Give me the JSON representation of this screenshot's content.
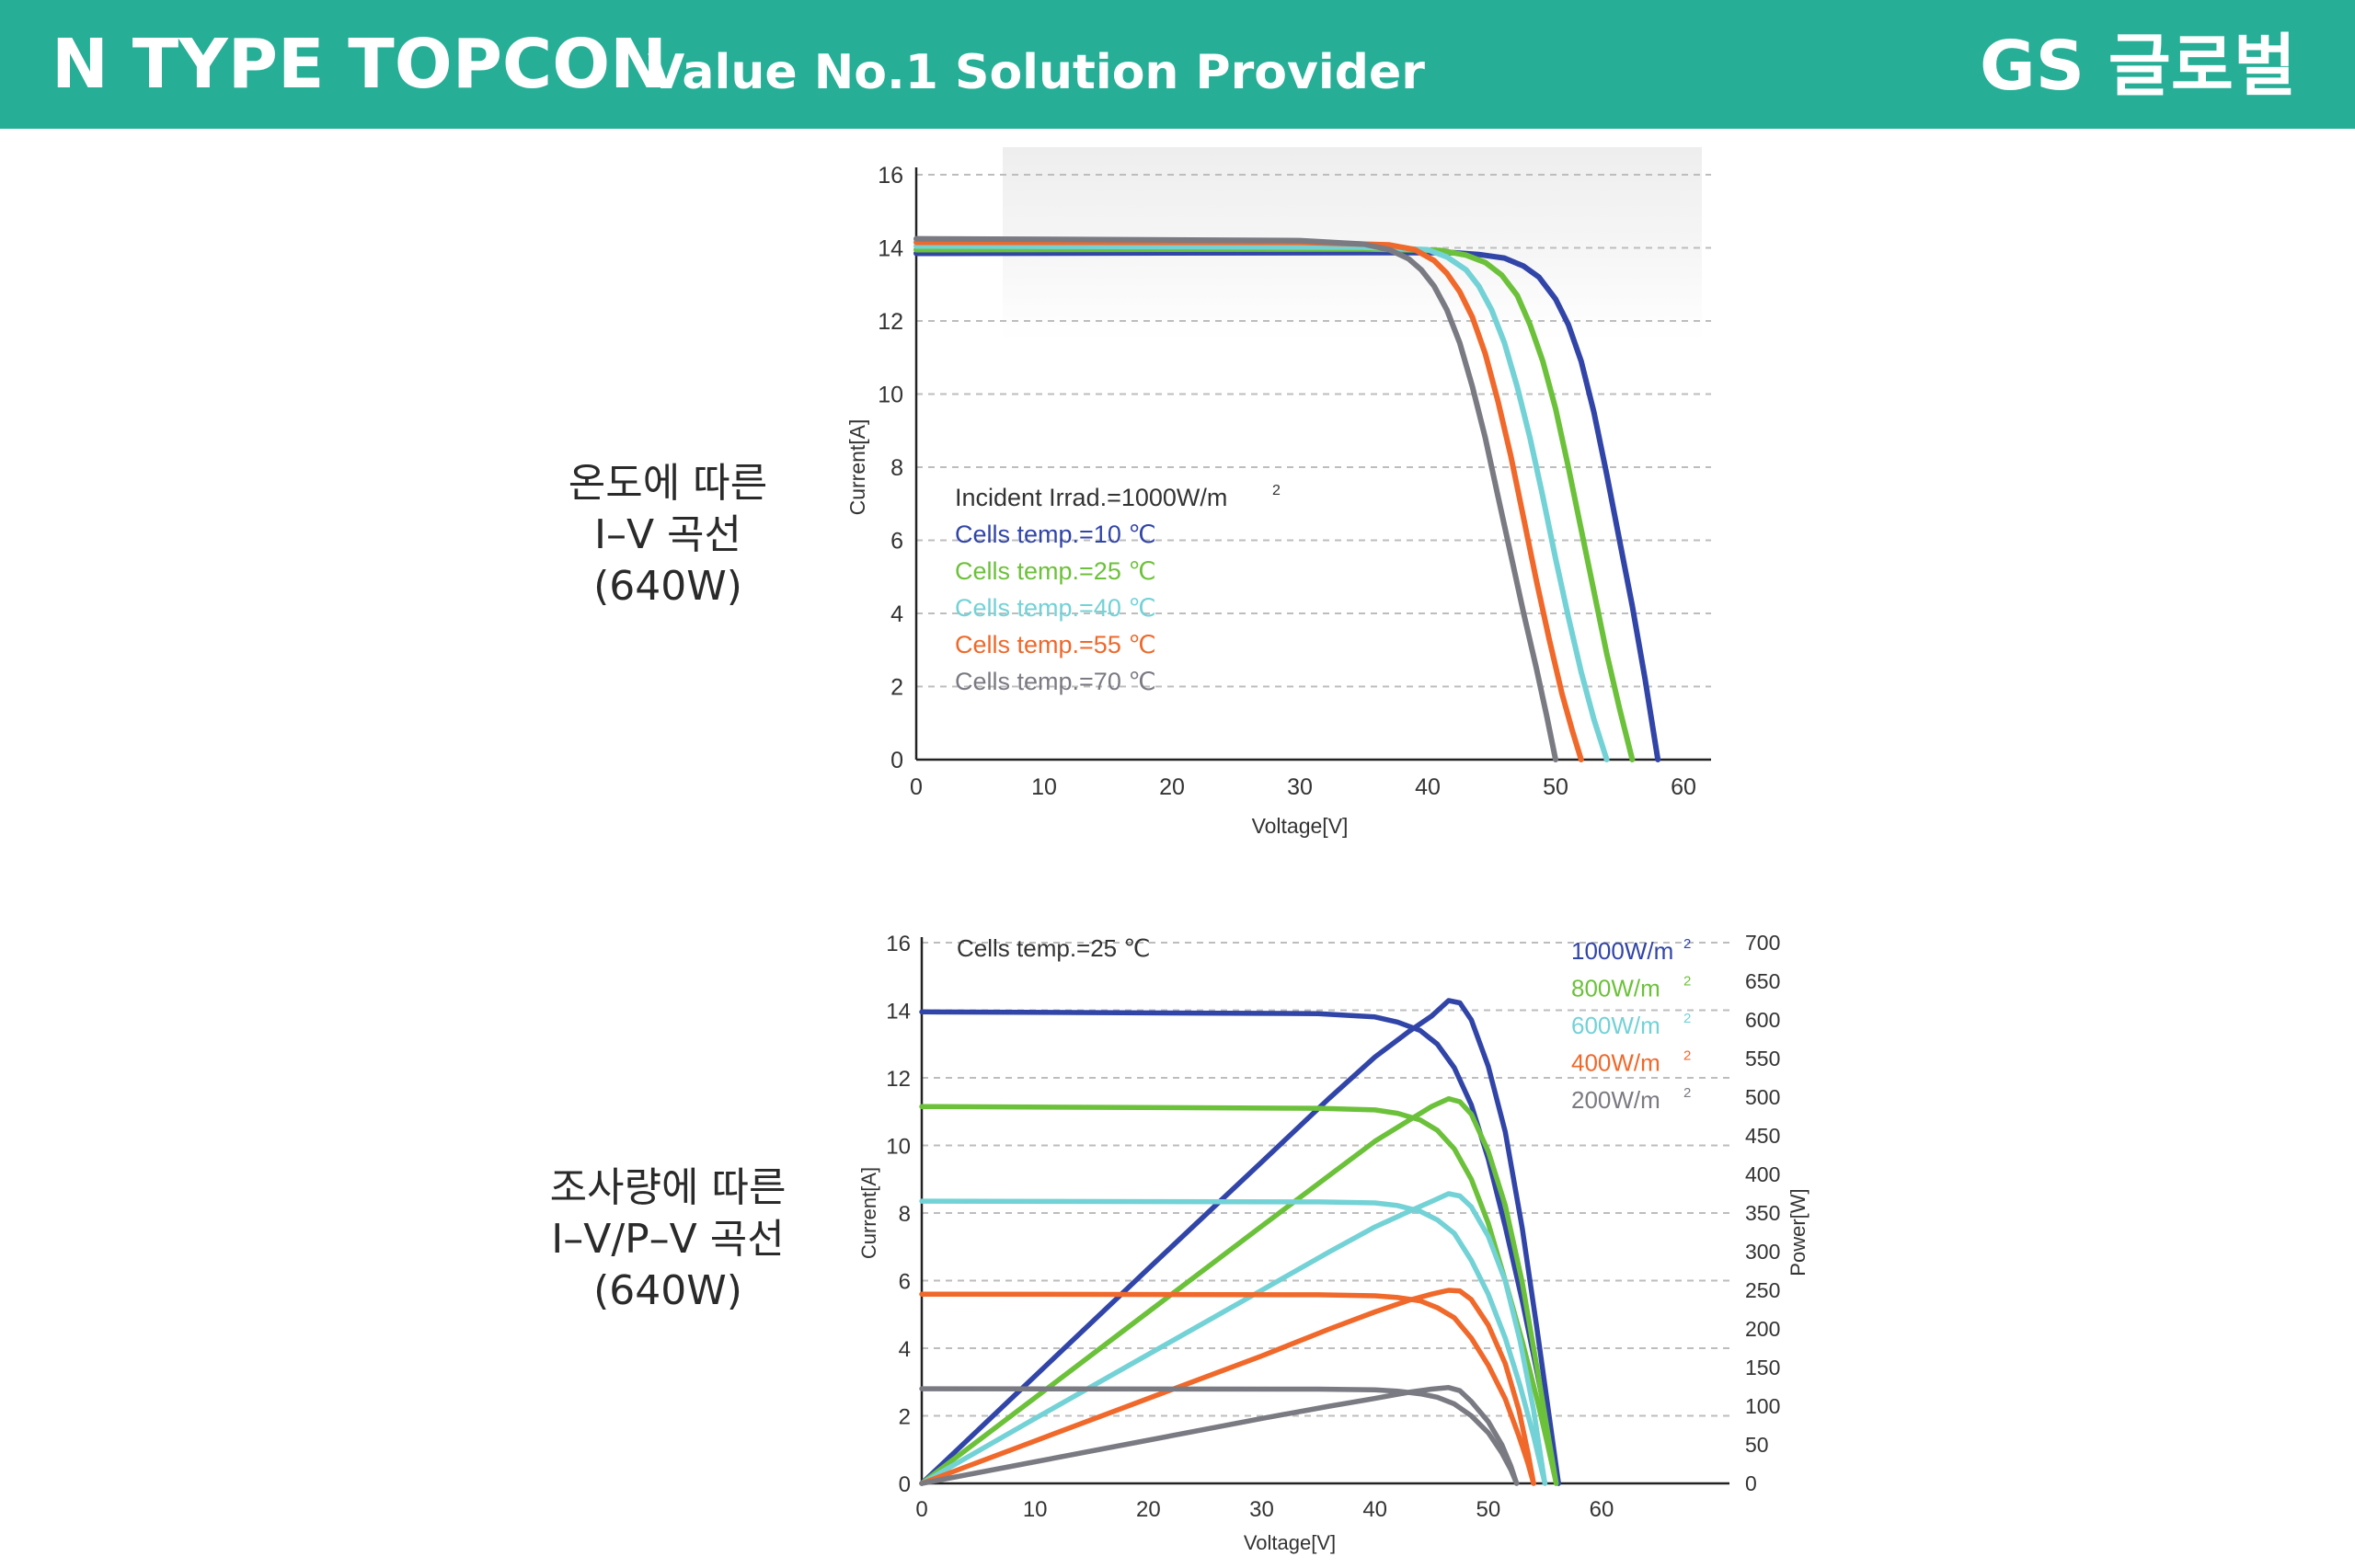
{
  "header": {
    "title": "N TYPE TOPCON",
    "subtitle": "Value No.1 Solution Provider",
    "logo": "GS 글로벌",
    "bg_color": "#26ae96"
  },
  "labels": {
    "top": [
      "온도에 따른",
      "I–V 곡선",
      "(640W)"
    ],
    "bottom": [
      "조사량에 따른",
      "I–V/P–V 곡선",
      "(640W)"
    ]
  },
  "chart_data": [
    {
      "type": "line",
      "xlabel": "Voltage[V]",
      "ylabel": "Current[A]",
      "xlim": [
        0,
        60
      ],
      "ylim": [
        0,
        16
      ],
      "xticks": [
        0,
        10,
        20,
        30,
        40,
        50,
        60
      ],
      "yticks": [
        0,
        2,
        4,
        6,
        8,
        10,
        12,
        14,
        16
      ],
      "grid": "horizontal dashed",
      "annotation": "Incident Irrad.=1000W/m",
      "annotation_sup": "2",
      "legend_position": "center-left",
      "series": [
        {
          "name": "Cells temp.=10 ℃",
          "color": "#3145a8",
          "points": [
            [
              0,
              13.85
            ],
            [
              35,
              13.87
            ],
            [
              42,
              13.87
            ],
            [
              44,
              13.82
            ],
            [
              46,
              13.72
            ],
            [
              47.5,
              13.5
            ],
            [
              48.7,
              13.2
            ],
            [
              50,
              12.6
            ],
            [
              51,
              11.9
            ],
            [
              52,
              10.9
            ],
            [
              53,
              9.5
            ],
            [
              54,
              7.8
            ],
            [
              55,
              6.0
            ],
            [
              56,
              4.2
            ],
            [
              57,
              2.2
            ],
            [
              58,
              0
            ]
          ]
        },
        {
          "name": "Cells temp.=25 ℃",
          "color": "#6cc13a",
          "points": [
            [
              0,
              13.95
            ],
            [
              35,
              13.97
            ],
            [
              41,
              13.93
            ],
            [
              43,
              13.8
            ],
            [
              44.5,
              13.6
            ],
            [
              45.8,
              13.25
            ],
            [
              47,
              12.7
            ],
            [
              48,
              11.9
            ],
            [
              49,
              10.9
            ],
            [
              50,
              9.6
            ],
            [
              51,
              8.0
            ],
            [
              52,
              6.3
            ],
            [
              53,
              4.6
            ],
            [
              54,
              2.9
            ],
            [
              55,
              1.4
            ],
            [
              56,
              0
            ]
          ]
        },
        {
          "name": "Cells temp.=40 ℃",
          "color": "#73d2d6",
          "points": [
            [
              0,
              14.05
            ],
            [
              35,
              14.02
            ],
            [
              40,
              13.95
            ],
            [
              41.5,
              13.75
            ],
            [
              43,
              13.4
            ],
            [
              44,
              12.95
            ],
            [
              45,
              12.3
            ],
            [
              46,
              11.4
            ],
            [
              47,
              10.2
            ],
            [
              48,
              8.8
            ],
            [
              49,
              7.2
            ],
            [
              50,
              5.5
            ],
            [
              51,
              3.9
            ],
            [
              52,
              2.4
            ],
            [
              53,
              1.1
            ],
            [
              54,
              0
            ]
          ]
        },
        {
          "name": "Cells temp.=55 ℃",
          "color": "#f0682a",
          "points": [
            [
              0,
              14.15
            ],
            [
              30,
              14.15
            ],
            [
              37,
              14.08
            ],
            [
              39,
              13.95
            ],
            [
              40.5,
              13.65
            ],
            [
              41.5,
              13.3
            ],
            [
              42.5,
              12.8
            ],
            [
              43.5,
              12.1
            ],
            [
              44.5,
              11.1
            ],
            [
              45.5,
              9.8
            ],
            [
              46.5,
              8.3
            ],
            [
              47.5,
              6.6
            ],
            [
              48.5,
              4.9
            ],
            [
              49.5,
              3.3
            ],
            [
              50.5,
              1.8
            ],
            [
              51.3,
              0.8
            ],
            [
              52,
              0
            ]
          ]
        },
        {
          "name": "Cells temp.=70 ℃",
          "color": "#7a7a82",
          "points": [
            [
              0,
              14.25
            ],
            [
              30,
              14.2
            ],
            [
              35,
              14.1
            ],
            [
              37,
              13.95
            ],
            [
              38.5,
              13.7
            ],
            [
              39.5,
              13.4
            ],
            [
              40.5,
              12.95
            ],
            [
              41.5,
              12.3
            ],
            [
              42.5,
              11.4
            ],
            [
              43.5,
              10.2
            ],
            [
              44.5,
              8.8
            ],
            [
              45.5,
              7.2
            ],
            [
              46.5,
              5.6
            ],
            [
              47.5,
              4.0
            ],
            [
              48.5,
              2.5
            ],
            [
              49.3,
              1.2
            ],
            [
              50,
              0
            ]
          ]
        }
      ]
    },
    {
      "type": "line",
      "xlabel": "Voltage[V]",
      "ylabel": "Current[A]",
      "y2label": "Power[W]",
      "xlim": [
        0,
        70
      ],
      "ylim": [
        0,
        16
      ],
      "y2lim": [
        0,
        700
      ],
      "xticks": [
        0,
        10,
        20,
        30,
        40,
        50,
        60
      ],
      "yticks": [
        0,
        2,
        4,
        6,
        8,
        10,
        12,
        14,
        16
      ],
      "y2ticks": [
        0,
        50,
        100,
        150,
        200,
        250,
        300,
        350,
        400,
        450,
        500,
        550,
        600,
        650,
        700
      ],
      "grid": "horizontal dashed",
      "annotation": "Cells temp.=25 ℃",
      "legend_position": "top-right",
      "series": [
        {
          "name": "1000W/m",
          "sup": "2",
          "color": "#3145a8",
          "iv": [
            [
              0,
              13.95
            ],
            [
              35,
              13.9
            ],
            [
              40,
              13.8
            ],
            [
              42,
              13.65
            ],
            [
              44,
              13.4
            ],
            [
              45.5,
              13.0
            ],
            [
              47,
              12.3
            ],
            [
              48.5,
              11.2
            ],
            [
              50,
              9.6
            ],
            [
              51.5,
              7.6
            ],
            [
              53,
              5.4
            ],
            [
              54.3,
              3.3
            ],
            [
              55.3,
              1.6
            ],
            [
              56.2,
              0
            ]
          ],
          "pv": [
            [
              0,
              0
            ],
            [
              10,
              139
            ],
            [
              20,
              278
            ],
            [
              30,
              416
            ],
            [
              36,
              499
            ],
            [
              40,
              552
            ],
            [
              43,
              585
            ],
            [
              45,
              605
            ],
            [
              46.5,
              625
            ],
            [
              47.5,
              622
            ],
            [
              48.5,
              600
            ],
            [
              50,
              540
            ],
            [
              51.5,
              455
            ],
            [
              53,
              330
            ],
            [
              54.3,
              200
            ],
            [
              55.3,
              95
            ],
            [
              56.2,
              0
            ]
          ]
        },
        {
          "name": "800W/m",
          "sup": "2",
          "color": "#6cc13a",
          "iv": [
            [
              0,
              11.15
            ],
            [
              35,
              11.1
            ],
            [
              40,
              11.05
            ],
            [
              42,
              10.95
            ],
            [
              44,
              10.75
            ],
            [
              45.5,
              10.45
            ],
            [
              47,
              9.9
            ],
            [
              48.5,
              9.0
            ],
            [
              50,
              7.7
            ],
            [
              51.5,
              6.0
            ],
            [
              53,
              4.2
            ],
            [
              54.3,
              2.5
            ],
            [
              55.2,
              1.2
            ],
            [
              56,
              0
            ]
          ],
          "pv": [
            [
              0,
              0
            ],
            [
              10,
              111
            ],
            [
              20,
              222
            ],
            [
              30,
              333
            ],
            [
              36,
              399
            ],
            [
              40,
              443
            ],
            [
              43,
              470
            ],
            [
              45,
              488
            ],
            [
              46.5,
              498
            ],
            [
              47.5,
              494
            ],
            [
              48.5,
              478
            ],
            [
              50,
              430
            ],
            [
              51.5,
              360
            ],
            [
              53,
              260
            ],
            [
              54.3,
              150
            ],
            [
              55.2,
              70
            ],
            [
              56,
              0
            ]
          ]
        },
        {
          "name": "600W/m",
          "sup": "2",
          "color": "#73d2d6",
          "iv": [
            [
              0,
              8.35
            ],
            [
              35,
              8.33
            ],
            [
              40,
              8.3
            ],
            [
              42,
              8.22
            ],
            [
              44,
              8.05
            ],
            [
              45.5,
              7.8
            ],
            [
              47,
              7.4
            ],
            [
              48.5,
              6.6
            ],
            [
              50,
              5.6
            ],
            [
              51.5,
              4.3
            ],
            [
              52.8,
              2.9
            ],
            [
              54,
              1.4
            ],
            [
              55,
              0
            ]
          ],
          "pv": [
            [
              0,
              0
            ],
            [
              10,
              84
            ],
            [
              20,
              167
            ],
            [
              30,
              250
            ],
            [
              36,
              300
            ],
            [
              40,
              332
            ],
            [
              43,
              352
            ],
            [
              45,
              365
            ],
            [
              46.5,
              375
            ],
            [
              47.5,
              372
            ],
            [
              48.5,
              358
            ],
            [
              50,
              320
            ],
            [
              51.5,
              262
            ],
            [
              52.8,
              185
            ],
            [
              54,
              95
            ],
            [
              55,
              0
            ]
          ]
        },
        {
          "name": "400W/m",
          "sup": "2",
          "color": "#f0682a",
          "iv": [
            [
              0,
              5.6
            ],
            [
              35,
              5.58
            ],
            [
              40,
              5.55
            ],
            [
              42,
              5.5
            ],
            [
              44,
              5.4
            ],
            [
              45.5,
              5.2
            ],
            [
              47,
              4.9
            ],
            [
              48.5,
              4.3
            ],
            [
              50,
              3.5
            ],
            [
              51.5,
              2.5
            ],
            [
              52.7,
              1.4
            ],
            [
              53.5,
              0.6
            ],
            [
              54,
              0
            ]
          ],
          "pv": [
            [
              0,
              0
            ],
            [
              10,
              55
            ],
            [
              20,
              110
            ],
            [
              30,
              165
            ],
            [
              36,
              200
            ],
            [
              40,
              222
            ],
            [
              43,
              237
            ],
            [
              45,
              245
            ],
            [
              46.5,
              250
            ],
            [
              47.5,
              249
            ],
            [
              48.5,
              238
            ],
            [
              50,
              205
            ],
            [
              51.5,
              155
            ],
            [
              52.7,
              95
            ],
            [
              53.5,
              40
            ],
            [
              54,
              0
            ]
          ]
        },
        {
          "name": "200W/m",
          "sup": "2",
          "color": "#7a7a82",
          "iv": [
            [
              0,
              2.8
            ],
            [
              35,
              2.79
            ],
            [
              40,
              2.77
            ],
            [
              42,
              2.73
            ],
            [
              44,
              2.65
            ],
            [
              45.5,
              2.55
            ],
            [
              47,
              2.35
            ],
            [
              48.5,
              2.0
            ],
            [
              50,
              1.5
            ],
            [
              51.2,
              0.9
            ],
            [
              52,
              0.4
            ],
            [
              52.5,
              0
            ]
          ],
          "pv": [
            [
              0,
              0
            ],
            [
              10,
              28
            ],
            [
              20,
              56
            ],
            [
              30,
              84
            ],
            [
              36,
              100
            ],
            [
              40,
              110
            ],
            [
              43,
              118
            ],
            [
              45,
              122
            ],
            [
              46.5,
              124
            ],
            [
              47.5,
              120
            ],
            [
              48.5,
              106
            ],
            [
              50,
              80
            ],
            [
              51.2,
              50
            ],
            [
              52,
              22
            ],
            [
              52.5,
              0
            ]
          ]
        }
      ]
    }
  ]
}
